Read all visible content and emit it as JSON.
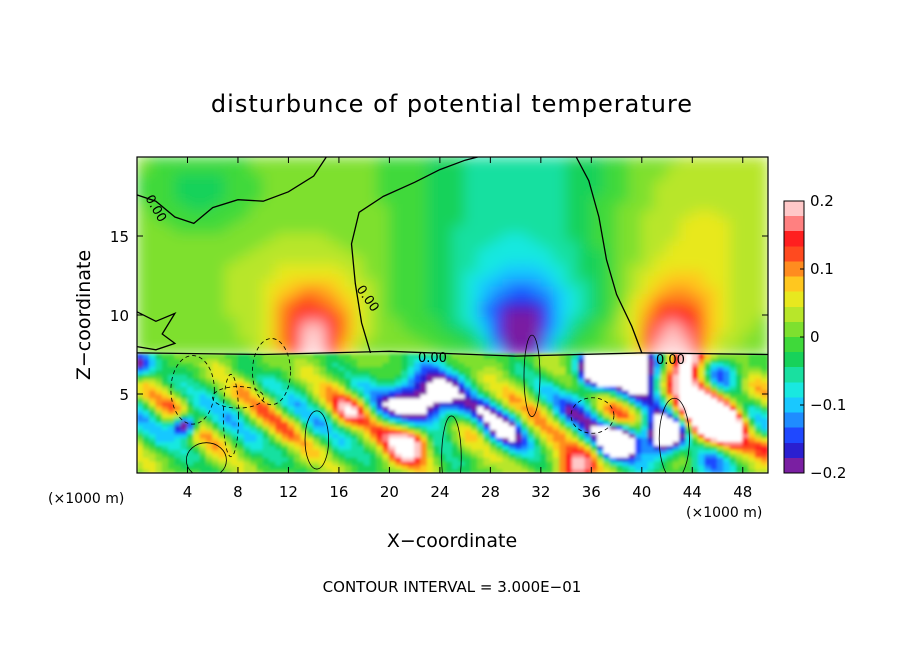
{
  "chart_data": {
    "type": "heatmap",
    "title": "disturbunce of potential temperature",
    "xlabel": "X−coordinate",
    "ylabel": "Z−coordinate",
    "x_unit": "(×1000 m)",
    "y_unit": "(×1000 m)",
    "xlim": [
      0,
      50
    ],
    "ylim": [
      0,
      20
    ],
    "x_ticks": [
      4,
      8,
      12,
      16,
      20,
      24,
      28,
      32,
      36,
      40,
      44,
      48
    ],
    "y_ticks": [
      5,
      10,
      15
    ],
    "grid": false,
    "colorbar": {
      "min": -0.2,
      "max": 0.2,
      "ticks": [
        "0.2",
        "0.1",
        "0",
        "−0.1",
        "−0.2"
      ],
      "colors": [
        "#7a1fa2",
        "#2a1fd0",
        "#1f48ff",
        "#1f8cff",
        "#19c8ff",
        "#19e8e0",
        "#19e0a0",
        "#17d25a",
        "#3fd93a",
        "#7ee02f",
        "#b8e62a",
        "#e8e81f",
        "#ffc71f",
        "#ff8c1f",
        "#ff4a1f",
        "#ff1f1f",
        "#ff8080",
        "#ffc8c8"
      ]
    },
    "contour_labels": [
      "0.00",
      "0.00",
      "0.00",
      "0.00"
    ],
    "annotation": "CONTOUR INTERVAL = 3.000E−01",
    "field_summary": {
      "upper_layer_z": [
        7.5,
        20
      ],
      "positive_plumes": [
        {
          "x": 14,
          "peak": 0.2
        },
        {
          "x": 42.5,
          "peak": 0.2
        }
      ],
      "negative_plume": {
        "x": 30.5,
        "peak": -0.2
      },
      "lower_layer_z": [
        0,
        7.5
      ],
      "lower_layer": "turbulent, values saturating beyond ±0.2"
    }
  }
}
